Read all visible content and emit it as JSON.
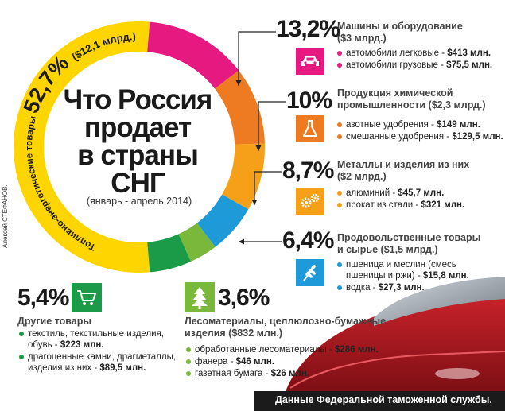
{
  "title_lines": [
    "Что Россия",
    "продает",
    "в страны",
    "СНГ"
  ],
  "subtitle": "(январь - апрель 2014)",
  "author": "Алексей СТЕФАНОВ.",
  "footer": "Данные Федеральной таможенной службы.",
  "fuel": {
    "pct": "52,7%",
    "amount": "($12,1 млрд.)",
    "label": "Топливно-энергетические товары"
  },
  "categories": [
    {
      "pct": "13,2%",
      "title": "Машины и оборудование",
      "amount": "($3 млрд.)",
      "color": "#e5197f",
      "icon": "car-icon",
      "items": [
        {
          "text": "автомобили легковые - ",
          "value": "$413 млн."
        },
        {
          "text": "автомобили грузовые - ",
          "value": "$75,5 млн."
        }
      ]
    },
    {
      "pct": "10%",
      "title": "Продукция химической",
      "title2": "промышленности",
      "amount": "($2,3 млрд.)",
      "color": "#ee7a22",
      "icon": "flask-icon",
      "items": [
        {
          "text": "азотные удобрения - ",
          "value": "$149 млн."
        },
        {
          "text": "смешанные удобрения - ",
          "value": "$129,5 млн."
        }
      ]
    },
    {
      "pct": "8,7%",
      "title": "Металлы и изделия из них",
      "amount": "($2 млрд.)",
      "color": "#f6a01a",
      "icon": "gears-icon",
      "items": [
        {
          "text": "алюминий - ",
          "value": "$45,7 млн."
        },
        {
          "text": "прокат из стали - ",
          "value": "$321 млн."
        }
      ]
    },
    {
      "pct": "6,4%",
      "title": "Продовольственные товары",
      "title2": "и сырье",
      "amount": "($1,5 млрд.)",
      "color": "#1f9ad8",
      "icon": "wheat-icon",
      "items": [
        {
          "text": "пшеница и меслин (смесь пшеницы и ржи) - ",
          "value": "$15,8 млн."
        },
        {
          "text": "водка - ",
          "value": "$27,3 млн."
        }
      ]
    },
    {
      "pct": "3,6%",
      "title": "Лесоматериалы, целлюлозно-бумажные",
      "title2": "изделия",
      "amount": "($832 млн.)",
      "color": "#7ab83c",
      "icon": "tree-icon",
      "items": [
        {
          "text": "обработанные лесоматериалы - ",
          "value": "$286 млн."
        },
        {
          "text": "фанера - ",
          "value": "$46 млн."
        },
        {
          "text": "газетная бумага - ",
          "value": "$26 млн."
        }
      ]
    },
    {
      "pct": "5,4%",
      "title": "Другие товары",
      "amount": "",
      "color": "#1b9a47",
      "icon": "cart-icon",
      "items": [
        {
          "text": "текстиль, текстильные изделия, обувь - ",
          "value": "$223 млн."
        },
        {
          "text": "драгоценные камни, драгметаллы, изделия из них - ",
          "value": "$89,5 млн."
        }
      ]
    }
  ],
  "chart_data": {
    "type": "pie",
    "title": "Что Россия продает в страны СНГ",
    "subtitle": "(январь - апрель 2014)",
    "slices": [
      {
        "label": "Топливно-энергетические товары",
        "value": 52.7,
        "amount": "$12,1 млрд.",
        "color": "#ffd500"
      },
      {
        "label": "Машины и оборудование",
        "value": 13.2,
        "amount": "$3 млрд.",
        "color": "#e5197f"
      },
      {
        "label": "Продукция химической промышленности",
        "value": 10.0,
        "amount": "$2,3 млрд.",
        "color": "#ee7a22"
      },
      {
        "label": "Металлы и изделия из них",
        "value": 8.7,
        "amount": "$2 млрд.",
        "color": "#f6a01a"
      },
      {
        "label": "Продовольственные товары и сырье",
        "value": 6.4,
        "amount": "$1,5 млрд.",
        "color": "#1f9ad8"
      },
      {
        "label": "Лесоматериалы, целлюлозно-бумажные изделия",
        "value": 3.6,
        "amount": "$832 млн.",
        "color": "#7ab83c"
      },
      {
        "label": "Другие товары",
        "value": 5.4,
        "amount": "",
        "color": "#1b9a47"
      }
    ]
  }
}
